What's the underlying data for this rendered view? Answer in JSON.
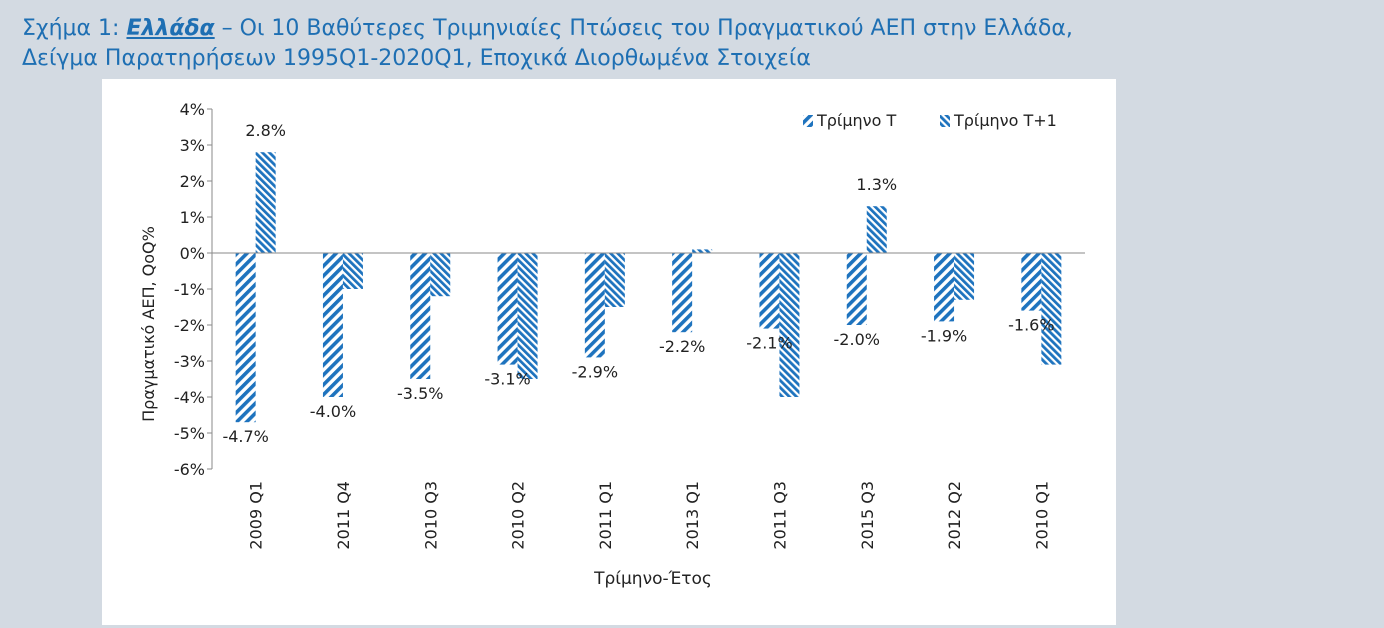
{
  "caption": {
    "prefix": "Σχήμα 1: ",
    "country": "Ελλάδα",
    "rest": " – Οι 10 Βαθύτερες Τριμηνιαίες Πτώσεις του Πραγματικού ΑΕΠ στην Ελλάδα,",
    "line2": "Δείγμα Παρατηρήσεων 1995Q1-2020Q1, Εποχικά Διορθωμένα Στοιχεία"
  },
  "colors": {
    "bar": "#1e73be",
    "caption": "#1e6fb3",
    "background": "#d3dae2",
    "panel": "#ffffff"
  },
  "chart_data": {
    "type": "bar",
    "categories": [
      "2009 Q1",
      "2011 Q4",
      "2010 Q3",
      "2010 Q2",
      "2011 Q1",
      "2013 Q1",
      "2011 Q3",
      "2015 Q3",
      "2012 Q2",
      "2010 Q1"
    ],
    "series": [
      {
        "name": "Τρίμηνο Τ",
        "pattern": "diagonal-stripes",
        "values": [
          -4.7,
          -4.0,
          -3.5,
          -3.1,
          -2.9,
          -2.2,
          -2.1,
          -2.0,
          -1.9,
          -1.6
        ],
        "data_labels": [
          "-4.7%",
          "-4.0%",
          "-3.5%",
          "-3.1%",
          "-2.9%",
          "-2.2%",
          "-2.1%",
          "-2.0%",
          "-1.9%",
          "-1.6%"
        ]
      },
      {
        "name": "Τρίμηνο Τ+1",
        "pattern": "diagonal-stripes",
        "values": [
          2.8,
          -1.0,
          -1.2,
          -3.5,
          -1.5,
          0.1,
          -4.0,
          1.3,
          -1.3,
          -3.1
        ],
        "data_labels": [
          "2.8%",
          "",
          "",
          "",
          "",
          "",
          "",
          "1.3%",
          "",
          ""
        ]
      }
    ],
    "xlabel": "Τρίμηνο-Έτος",
    "ylabel": "Πραγματικό ΑΕΠ, QoQ%",
    "ylim": [
      -6,
      4
    ],
    "yticks": [
      4,
      3,
      2,
      1,
      0,
      -1,
      -2,
      -3,
      -4,
      -5,
      -6
    ],
    "ytick_labels": [
      "4%",
      "3%",
      "2%",
      "1%",
      "0%",
      "-1%",
      "-2%",
      "-3%",
      "-4%",
      "-5%",
      "-6%"
    ],
    "legend_position": "top-right",
    "grid": false
  }
}
